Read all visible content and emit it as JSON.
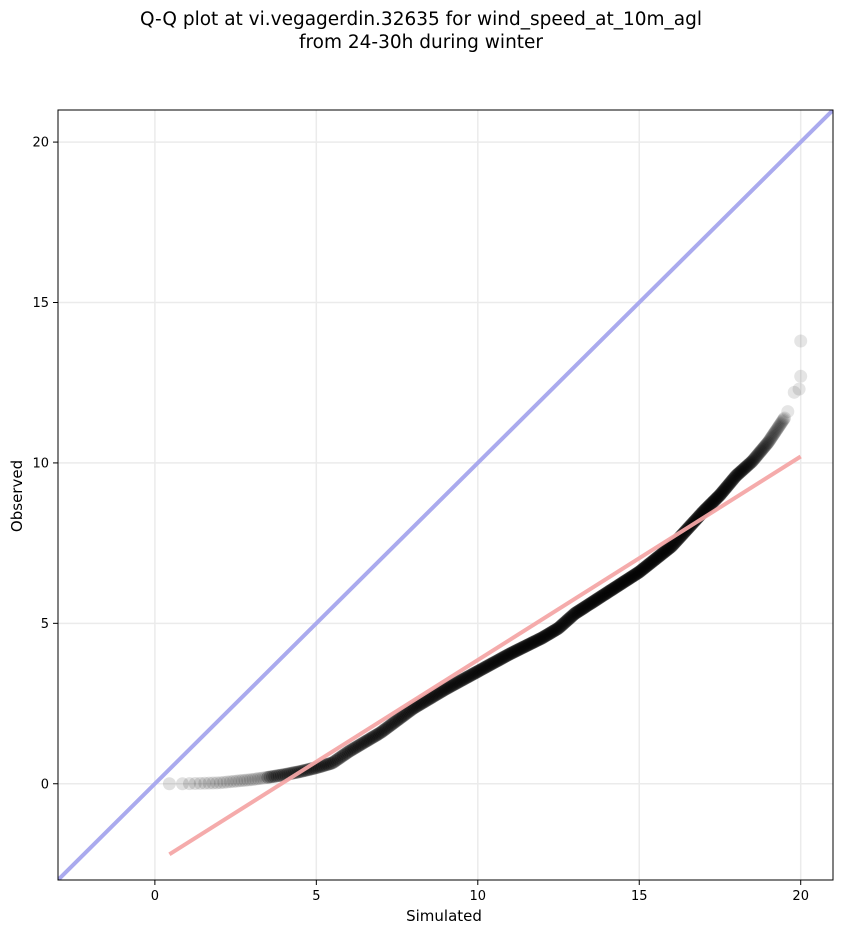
{
  "chart_data": {
    "type": "scatter",
    "title_lines": [
      "Q-Q plot at vi.vegagerdin.32635 for wind_speed_at_10m_agl",
      "from 24-30h during winter"
    ],
    "xlabel": "Simulated",
    "ylabel": "Observed",
    "xlim": [
      -3,
      21
    ],
    "ylim": [
      -3,
      21
    ],
    "xticks": [
      0,
      5,
      10,
      15,
      20
    ],
    "yticks": [
      0,
      5,
      10,
      15,
      20
    ],
    "grid": true,
    "colors": {
      "points": "#000000",
      "identity_line": "#aaaaee",
      "fit_line": "#f4a6a6",
      "grid": "#ebebeb"
    },
    "identity_line": {
      "x": [
        -3,
        21
      ],
      "y": [
        -3,
        21
      ]
    },
    "fit_line": {
      "x": [
        0.45,
        20.0
      ],
      "y": [
        -2.2,
        10.2
      ]
    },
    "quantile_curve": {
      "x": [
        0.45,
        1.0,
        2.0,
        2.5,
        3.0,
        3.5,
        4.0,
        4.5,
        5.0,
        5.5,
        6.0,
        7.0,
        8.0,
        9.0,
        10.0,
        11.0,
        12.0,
        12.5,
        13.0,
        14.0,
        15.0,
        16.0,
        16.5,
        17.0,
        17.5,
        18.0,
        18.5,
        19.0,
        19.5
      ],
      "y": [
        0.0,
        0.0,
        0.03,
        0.08,
        0.13,
        0.2,
        0.28,
        0.38,
        0.5,
        0.65,
        1.0,
        1.6,
        2.35,
        2.95,
        3.5,
        4.05,
        4.55,
        4.85,
        5.3,
        5.95,
        6.6,
        7.4,
        7.95,
        8.5,
        9.0,
        9.6,
        10.05,
        10.65,
        11.4
      ]
    },
    "top_points": [
      {
        "x": 19.6,
        "y": 11.6
      },
      {
        "x": 19.8,
        "y": 12.2
      },
      {
        "x": 19.95,
        "y": 12.3
      },
      {
        "x": 20.0,
        "y": 12.7
      },
      {
        "x": 20.0,
        "y": 13.8
      }
    ],
    "n_points": 500
  }
}
